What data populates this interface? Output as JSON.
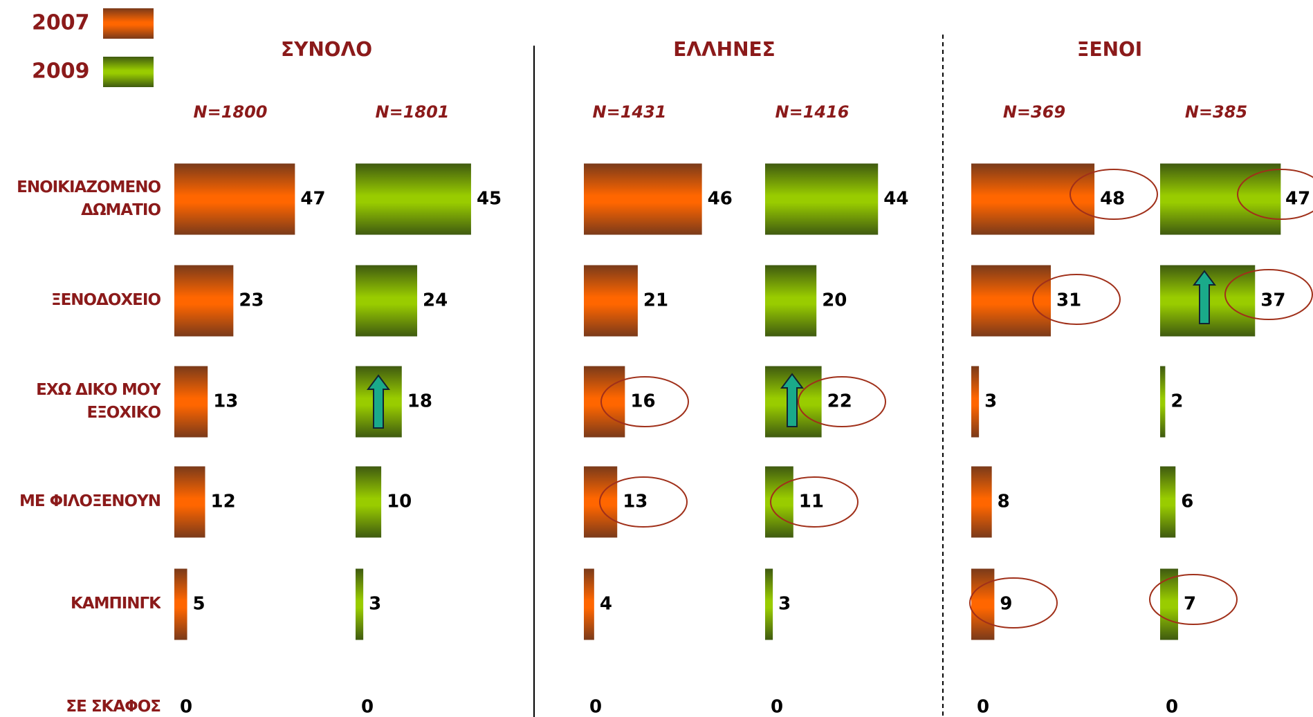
{
  "chart_data": {
    "type": "bar",
    "orientation": "horizontal",
    "categories": [
      "ΕΝΟΙΚΙΑΖΟΜΕΝΟ ΔΩΜΑΤΙΟ",
      "ΞΕΝΟΔΟΧΕΙΟ",
      "ΕΧΩ ΔΙΚΟ ΜΟΥ ΕΞΟΧΙΚΟ",
      "ΜΕ ΦΙΛΟΞΕΝΟΥΝ",
      "ΚΑΜΠΙΝΓΚ",
      "ΣΕ ΣΚΑΦΟΣ"
    ],
    "panels": [
      {
        "title": "ΣΥΝΟΛΟ",
        "series": [
          {
            "name": "2007",
            "color": "#ff6600",
            "n_label": "N=1800",
            "values": [
              47,
              23,
              13,
              12,
              5,
              0
            ]
          },
          {
            "name": "2009",
            "color": "#99cc00",
            "n_label": "N=1801",
            "values": [
              45,
              24,
              18,
              10,
              3,
              0
            ]
          }
        ]
      },
      {
        "title": "ΕΛΛΗΝΕΣ",
        "series": [
          {
            "name": "2007",
            "color": "#ff6600",
            "n_label": "N=1431",
            "values": [
              46,
              21,
              16,
              13,
              4,
              0
            ]
          },
          {
            "name": "2009",
            "color": "#99cc00",
            "n_label": "N=1416",
            "values": [
              44,
              20,
              22,
              11,
              3,
              0
            ]
          }
        ]
      },
      {
        "title": "ΞΕΝΟΙ",
        "series": [
          {
            "name": "2007",
            "color": "#ff6600",
            "n_label": "N=369",
            "values": [
              48,
              31,
              3,
              8,
              9,
              0
            ]
          },
          {
            "name": "2009",
            "color": "#99cc00",
            "n_label": "N=385",
            "values": [
              47,
              37,
              2,
              6,
              7,
              0
            ]
          }
        ]
      }
    ]
  }
}
